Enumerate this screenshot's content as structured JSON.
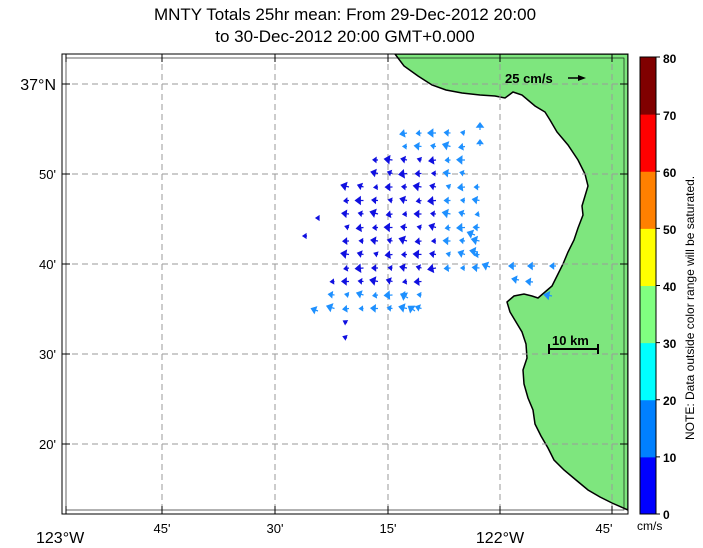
{
  "title": {
    "line1": "MNTY Totals 25hr mean: From 29-Dec-2012 20:00",
    "line2": "to 30-Dec-2012 20:00 GMT+0.000"
  },
  "axes": {
    "x_labels": [
      "123°W",
      "45'",
      "30'",
      "15'",
      "122°W",
      "45'"
    ],
    "y_labels": [
      "37°N",
      "50'",
      "40'",
      "30'",
      "20'"
    ]
  },
  "reference_vector": {
    "label": "25 cm/s"
  },
  "scale_bar": {
    "label": "10 km"
  },
  "colorbar": {
    "unit": "cm/s",
    "tick_labels": [
      "0",
      "10",
      "20",
      "30",
      "40",
      "50",
      "60",
      "70",
      "80"
    ],
    "colors": [
      "#0000ff",
      "#0080ff",
      "#00ffff",
      "#80ff80",
      "#ffff00",
      "#ff8000",
      "#ff0000",
      "#800000"
    ],
    "note": "NOTE: Data outside color range will be saturated."
  },
  "colors": {
    "land": "#7ee67e",
    "coast": "#000000",
    "grid": "#9a9a9a"
  }
}
